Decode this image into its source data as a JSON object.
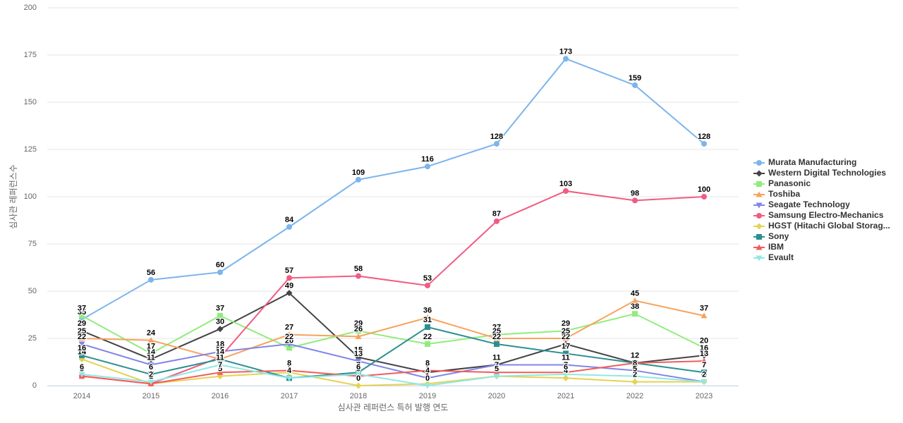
{
  "chart_data": {
    "type": "line",
    "x_label": "심사관 레퍼런스 특허 발행 연도",
    "y_label": "심사관 레퍼런스수",
    "categories": [
      "2014",
      "2015",
      "2016",
      "2017",
      "2018",
      "2019",
      "2020",
      "2021",
      "2022",
      "2023"
    ],
    "ylim": [
      0,
      200
    ],
    "yticks": [
      0,
      25,
      50,
      75,
      100,
      125,
      150,
      175,
      200
    ],
    "grid": true,
    "legend": "right",
    "series": [
      {
        "name": "Murata Manufacturing",
        "color": "#7cb5ec",
        "marker": "circle",
        "values": [
          35,
          56,
          60,
          84,
          109,
          116,
          128,
          173,
          159,
          128
        ]
      },
      {
        "name": "Western Digital Technologies",
        "color": "#434348",
        "marker": "diamond",
        "values": [
          29,
          14,
          30,
          49,
          15,
          7,
          11,
          22,
          12,
          16
        ]
      },
      {
        "name": "Panasonic",
        "color": "#90ed7d",
        "marker": "square",
        "values": [
          37,
          17,
          37,
          20,
          29,
          22,
          27,
          29,
          38,
          20
        ]
      },
      {
        "name": "Toshiba",
        "color": "#f7a35c",
        "marker": "triangle",
        "values": [
          25,
          24,
          14,
          27,
          26,
          36,
          25,
          25,
          45,
          37
        ]
      },
      {
        "name": "Seagate Technology",
        "color": "#8085e9",
        "marker": "triangle-down",
        "values": [
          22,
          11,
          18,
          22,
          13,
          4,
          11,
          11,
          8,
          2
        ]
      },
      {
        "name": "Samsung Electro-Mechanics",
        "color": "#f15c80",
        "marker": "circle",
        "values": [
          5,
          1,
          15,
          57,
          58,
          53,
          87,
          103,
          98,
          100
        ]
      },
      {
        "name": "HGST (Hitachi Global Storag...",
        "color": "#e4d354",
        "marker": "diamond",
        "values": [
          14,
          1,
          5,
          7,
          0,
          1,
          5,
          4,
          2,
          2
        ]
      },
      {
        "name": "Sony",
        "color": "#2b908f",
        "marker": "square",
        "values": [
          16,
          6,
          14,
          4,
          7,
          31,
          22,
          17,
          12,
          7
        ]
      },
      {
        "name": "IBM",
        "color": "#f45b5b",
        "marker": "triangle",
        "values": [
          5,
          1,
          7,
          8,
          5,
          8,
          7,
          7,
          12,
          13
        ]
      },
      {
        "name": "Evault",
        "color": "#91e8e1",
        "marker": "triangle-down",
        "values": [
          6,
          2,
          11,
          4,
          6,
          0,
          5,
          6,
          5,
          2
        ]
      }
    ]
  }
}
